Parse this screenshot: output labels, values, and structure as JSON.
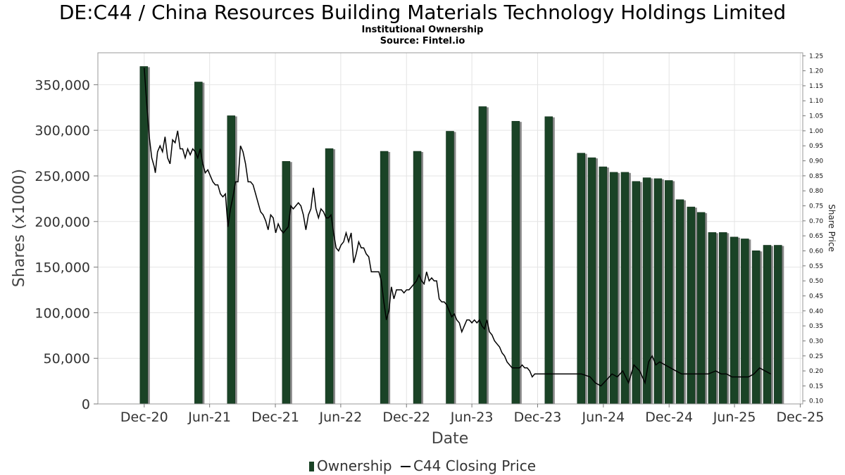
{
  "title": "DE:C44 / China Resources Building Materials Technology Holdings Limited",
  "subtitle_1": "Institutional Ownership",
  "subtitle_2": "Source: Fintel.io",
  "colors": {
    "bar": "#1a4326",
    "bar_shadow": "#8a8a8a",
    "line": "#000000",
    "grid": "#e4e4e4"
  },
  "chart_data": {
    "type": "bar",
    "xlabel": "Date",
    "ylabel": "Shares (x1000)",
    "y2label": "Share Price",
    "xticks": [
      "Dec-20",
      "Jun-21",
      "Dec-21",
      "Jun-22",
      "Dec-22",
      "Jun-23",
      "Dec-23",
      "Jun-24",
      "Dec-24",
      "Jun-25",
      "Dec-25"
    ],
    "yticks": [
      "0",
      "50,000",
      "100,000",
      "150,000",
      "200,000",
      "250,000",
      "300,000",
      "350,000"
    ],
    "y2ticks": [
      "0.10",
      "0.15",
      "0.20",
      "0.25",
      "0.30",
      "0.35",
      "0.40",
      "0.45",
      "0.50",
      "0.55",
      "0.60",
      "0.65",
      "0.70",
      "0.75",
      "0.80",
      "0.85",
      "0.90",
      "0.95",
      "1.00",
      "1.05",
      "1.10",
      "1.15",
      "1.20",
      "1.25"
    ],
    "ylim": [
      0,
      385000
    ],
    "y2lim": [
      0.09,
      1.26
    ],
    "grid": true,
    "legend_position": "bottom",
    "series": [
      {
        "name": "Ownership",
        "type": "bar",
        "points": [
          [
            "2020-11-30",
            370000
          ],
          [
            "2021-05-01",
            353000
          ],
          [
            "2021-07-31",
            316000
          ],
          [
            "2021-12-31",
            266000
          ],
          [
            "2022-04-30",
            280000
          ],
          [
            "2022-09-30",
            277000
          ],
          [
            "2022-12-31",
            277000
          ],
          [
            "2023-04-01",
            299000
          ],
          [
            "2023-07-01",
            326000
          ],
          [
            "2023-10-01",
            310000
          ],
          [
            "2024-01-01",
            315000
          ],
          [
            "2024-03-31",
            275000
          ],
          [
            "2024-04-30",
            270000
          ],
          [
            "2024-05-31",
            260000
          ],
          [
            "2024-06-30",
            254000
          ],
          [
            "2024-07-31",
            254000
          ],
          [
            "2024-08-31",
            244000
          ],
          [
            "2024-09-30",
            248000
          ],
          [
            "2024-10-31",
            247000
          ],
          [
            "2024-11-30",
            245000
          ],
          [
            "2024-12-31",
            224000
          ],
          [
            "2025-01-31",
            216000
          ],
          [
            "2025-02-28",
            210000
          ],
          [
            "2025-03-31",
            188000
          ],
          [
            "2025-04-30",
            188000
          ],
          [
            "2025-05-31",
            183000
          ],
          [
            "2025-06-30",
            181000
          ],
          [
            "2025-07-31",
            168000
          ],
          [
            "2025-08-31",
            174000
          ],
          [
            "2025-09-30",
            174000
          ]
        ]
      },
      {
        "name": "C44 Closing Price",
        "type": "line",
        "axis": "right",
        "points": [
          [
            "2020-12-01",
            1.21
          ],
          [
            "2020-12-08",
            1.09
          ],
          [
            "2020-12-15",
            0.98
          ],
          [
            "2020-12-22",
            0.91
          ],
          [
            "2020-12-29",
            0.88
          ],
          [
            "2021-01-01",
            0.86
          ],
          [
            "2021-01-07",
            0.93
          ],
          [
            "2021-01-14",
            0.95
          ],
          [
            "2021-01-21",
            0.93
          ],
          [
            "2021-01-28",
            0.98
          ],
          [
            "2021-02-04",
            0.91
          ],
          [
            "2021-02-11",
            0.89
          ],
          [
            "2021-02-18",
            0.97
          ],
          [
            "2021-02-25",
            0.96
          ],
          [
            "2021-03-04",
            1.0
          ],
          [
            "2021-03-11",
            0.94
          ],
          [
            "2021-03-18",
            0.94
          ],
          [
            "2021-03-25",
            0.91
          ],
          [
            "2021-04-01",
            0.94
          ],
          [
            "2021-04-08",
            0.92
          ],
          [
            "2021-04-15",
            0.94
          ],
          [
            "2021-04-22",
            0.93
          ],
          [
            "2021-04-29",
            0.91
          ],
          [
            "2021-05-06",
            0.94
          ],
          [
            "2021-05-13",
            0.89
          ],
          [
            "2021-05-20",
            0.86
          ],
          [
            "2021-05-27",
            0.87
          ],
          [
            "2021-06-03",
            0.85
          ],
          [
            "2021-06-10",
            0.83
          ],
          [
            "2021-06-17",
            0.82
          ],
          [
            "2021-06-24",
            0.82
          ],
          [
            "2021-07-01",
            0.79
          ],
          [
            "2021-07-08",
            0.78
          ],
          [
            "2021-07-15",
            0.79
          ],
          [
            "2021-07-22",
            0.68
          ],
          [
            "2021-07-29",
            0.74
          ],
          [
            "2021-08-05",
            0.78
          ],
          [
            "2021-08-12",
            0.83
          ],
          [
            "2021-08-19",
            0.83
          ],
          [
            "2021-08-26",
            0.95
          ],
          [
            "2021-09-02",
            0.93
          ],
          [
            "2021-09-09",
            0.89
          ],
          [
            "2021-09-16",
            0.83
          ],
          [
            "2021-09-23",
            0.83
          ],
          [
            "2021-09-30",
            0.82
          ],
          [
            "2021-10-07",
            0.79
          ],
          [
            "2021-10-14",
            0.76
          ],
          [
            "2021-10-21",
            0.73
          ],
          [
            "2021-10-28",
            0.72
          ],
          [
            "2021-11-04",
            0.7
          ],
          [
            "2021-11-11",
            0.67
          ],
          [
            "2021-11-18",
            0.72
          ],
          [
            "2021-11-25",
            0.71
          ],
          [
            "2021-12-02",
            0.66
          ],
          [
            "2021-12-09",
            0.69
          ],
          [
            "2021-12-16",
            0.67
          ],
          [
            "2021-12-23",
            0.66
          ],
          [
            "2021-12-30",
            0.67
          ],
          [
            "2022-01-06",
            0.68
          ],
          [
            "2022-01-13",
            0.75
          ],
          [
            "2022-01-20",
            0.74
          ],
          [
            "2022-01-27",
            0.75
          ],
          [
            "2022-02-03",
            0.76
          ],
          [
            "2022-02-10",
            0.75
          ],
          [
            "2022-02-17",
            0.72
          ],
          [
            "2022-02-24",
            0.67
          ],
          [
            "2022-03-03",
            0.72
          ],
          [
            "2022-03-10",
            0.74
          ],
          [
            "2022-03-17",
            0.81
          ],
          [
            "2022-03-24",
            0.74
          ],
          [
            "2022-03-31",
            0.71
          ],
          [
            "2022-04-07",
            0.74
          ],
          [
            "2022-04-14",
            0.73
          ],
          [
            "2022-04-21",
            0.71
          ],
          [
            "2022-04-28",
            0.71
          ],
          [
            "2022-05-05",
            0.72
          ],
          [
            "2022-05-12",
            0.66
          ],
          [
            "2022-05-19",
            0.61
          ],
          [
            "2022-05-26",
            0.6
          ],
          [
            "2022-06-02",
            0.62
          ],
          [
            "2022-06-09",
            0.63
          ],
          [
            "2022-06-16",
            0.66
          ],
          [
            "2022-06-23",
            0.63
          ],
          [
            "2022-06-30",
            0.66
          ],
          [
            "2022-07-07",
            0.56
          ],
          [
            "2022-07-14",
            0.59
          ],
          [
            "2022-07-21",
            0.63
          ],
          [
            "2022-07-28",
            0.61
          ],
          [
            "2022-08-04",
            0.61
          ],
          [
            "2022-08-11",
            0.59
          ],
          [
            "2022-08-18",
            0.58
          ],
          [
            "2022-08-25",
            0.53
          ],
          [
            "2022-09-01",
            0.53
          ],
          [
            "2022-09-08",
            0.53
          ],
          [
            "2022-09-15",
            0.53
          ],
          [
            "2022-09-22",
            0.5
          ],
          [
            "2022-09-29",
            0.43
          ],
          [
            "2022-10-06",
            0.37
          ],
          [
            "2022-10-13",
            0.4
          ],
          [
            "2022-10-20",
            0.48
          ],
          [
            "2022-10-27",
            0.44
          ],
          [
            "2022-11-03",
            0.47
          ],
          [
            "2022-11-10",
            0.47
          ],
          [
            "2022-11-17",
            0.47
          ],
          [
            "2022-11-24",
            0.46
          ],
          [
            "2022-12-01",
            0.47
          ],
          [
            "2022-12-08",
            0.47
          ],
          [
            "2022-12-15",
            0.48
          ],
          [
            "2022-12-22",
            0.49
          ],
          [
            "2022-12-29",
            0.5
          ],
          [
            "2023-01-05",
            0.52
          ],
          [
            "2023-01-12",
            0.5
          ],
          [
            "2023-01-19",
            0.49
          ],
          [
            "2023-01-26",
            0.53
          ],
          [
            "2023-02-02",
            0.5
          ],
          [
            "2023-02-09",
            0.51
          ],
          [
            "2023-02-16",
            0.5
          ],
          [
            "2023-02-23",
            0.5
          ],
          [
            "2023-03-02",
            0.44
          ],
          [
            "2023-03-09",
            0.43
          ],
          [
            "2023-03-16",
            0.43
          ],
          [
            "2023-03-23",
            0.42
          ],
          [
            "2023-03-30",
            0.4
          ],
          [
            "2023-04-06",
            0.38
          ],
          [
            "2023-04-13",
            0.39
          ],
          [
            "2023-04-20",
            0.37
          ],
          [
            "2023-04-27",
            0.36
          ],
          [
            "2023-05-04",
            0.33
          ],
          [
            "2023-05-11",
            0.35
          ],
          [
            "2023-05-18",
            0.37
          ],
          [
            "2023-05-25",
            0.37
          ],
          [
            "2023-06-01",
            0.36
          ],
          [
            "2023-06-08",
            0.37
          ],
          [
            "2023-06-15",
            0.36
          ],
          [
            "2023-06-22",
            0.37
          ],
          [
            "2023-06-29",
            0.35
          ],
          [
            "2023-07-06",
            0.34
          ],
          [
            "2023-07-13",
            0.37
          ],
          [
            "2023-07-20",
            0.33
          ],
          [
            "2023-07-27",
            0.32
          ],
          [
            "2023-08-03",
            0.3
          ],
          [
            "2023-08-10",
            0.29
          ],
          [
            "2023-08-17",
            0.28
          ],
          [
            "2023-08-24",
            0.26
          ],
          [
            "2023-08-31",
            0.25
          ],
          [
            "2023-09-07",
            0.23
          ],
          [
            "2023-09-14",
            0.22
          ],
          [
            "2023-09-21",
            0.21
          ],
          [
            "2023-09-28",
            0.21
          ],
          [
            "2023-10-05",
            0.21
          ],
          [
            "2023-10-12",
            0.21
          ],
          [
            "2023-10-19",
            0.22
          ],
          [
            "2023-10-26",
            0.21
          ],
          [
            "2023-11-02",
            0.21
          ],
          [
            "2023-11-09",
            0.2
          ],
          [
            "2023-11-16",
            0.18
          ],
          [
            "2023-11-23",
            0.19
          ],
          [
            "2023-11-30",
            0.19
          ],
          [
            "2023-12-15",
            0.19
          ],
          [
            "2024-01-01",
            0.19
          ],
          [
            "2024-02-01",
            0.19
          ],
          [
            "2024-03-01",
            0.19
          ],
          [
            "2024-04-01",
            0.19
          ],
          [
            "2024-04-25",
            0.18
          ],
          [
            "2024-05-10",
            0.16
          ],
          [
            "2024-05-25",
            0.15
          ],
          [
            "2024-06-10",
            0.17
          ],
          [
            "2024-06-25",
            0.19
          ],
          [
            "2024-07-10",
            0.18
          ],
          [
            "2024-07-25",
            0.2
          ],
          [
            "2024-08-10",
            0.16
          ],
          [
            "2024-08-25",
            0.22
          ],
          [
            "2024-09-10",
            0.2
          ],
          [
            "2024-09-25",
            0.16
          ],
          [
            "2024-10-05",
            0.23
          ],
          [
            "2024-10-15",
            0.25
          ],
          [
            "2024-10-25",
            0.22
          ],
          [
            "2024-11-05",
            0.23
          ],
          [
            "2024-11-20",
            0.22
          ],
          [
            "2024-12-05",
            0.21
          ],
          [
            "2024-12-20",
            0.2
          ],
          [
            "2025-01-05",
            0.19
          ],
          [
            "2025-01-25",
            0.19
          ],
          [
            "2025-02-10",
            0.19
          ],
          [
            "2025-03-01",
            0.19
          ],
          [
            "2025-03-20",
            0.19
          ],
          [
            "2025-04-10",
            0.2
          ],
          [
            "2025-04-25",
            0.19
          ],
          [
            "2025-05-10",
            0.19
          ],
          [
            "2025-05-25",
            0.18
          ],
          [
            "2025-06-10",
            0.18
          ],
          [
            "2025-06-25",
            0.18
          ],
          [
            "2025-07-10",
            0.18
          ],
          [
            "2025-07-25",
            0.19
          ],
          [
            "2025-08-10",
            0.21
          ],
          [
            "2025-08-25",
            0.2
          ],
          [
            "2025-09-10",
            0.19
          ]
        ]
      }
    ]
  }
}
